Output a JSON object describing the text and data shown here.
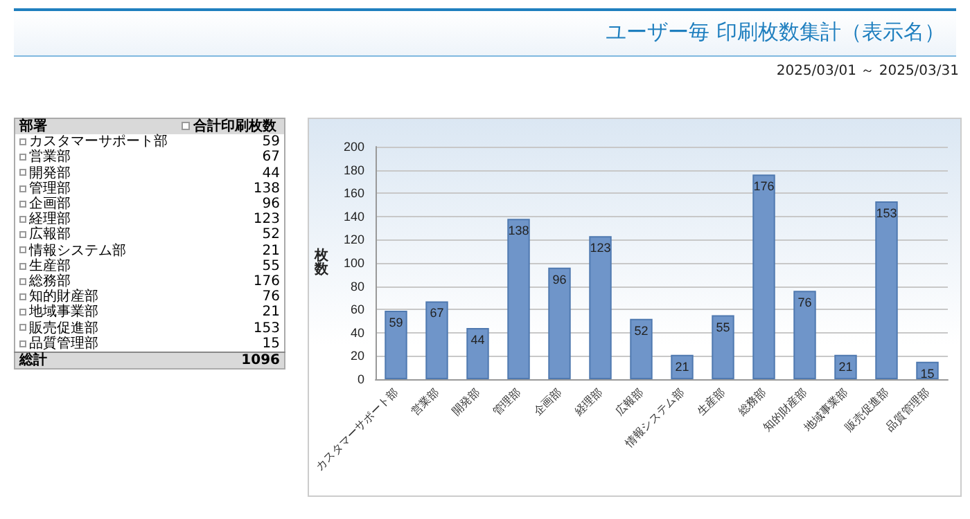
{
  "chart_data": [
    {
      "type": "other",
      "title": "ユーザー毎 印刷枚数集計（表示名）",
      "subtitle": "2025/03/01 ～ 2025/03/31",
      "categories": [
        "カスタマーサポート部",
        "営業部",
        "開発部",
        "管理部",
        "企画部",
        "経理部",
        "広報部",
        "情報システム部",
        "生産部",
        "総務部",
        "知的財産部",
        "地域事業部",
        "販売促進部",
        "品質管理部"
      ],
      "values": [
        59,
        67,
        44,
        138,
        96,
        123,
        52,
        21,
        55,
        176,
        76,
        21,
        153,
        15
      ],
      "data_labels": true,
      "annotations": [
        "部署",
        "合計印刷枚数",
        "総計",
        "1096"
      ]
    },
    {
      "type": "bar",
      "ylabel": "枚数",
      "categories": [
        "カスタマーサポート部",
        "営業部",
        "開発部",
        "管理部",
        "企画部",
        "経理部",
        "広報部",
        "情報システム部",
        "生産部",
        "総務部",
        "知的財産部",
        "地域事業部",
        "販売促進部",
        "品質管理部"
      ],
      "values": [
        59,
        67,
        44,
        138,
        96,
        123,
        52,
        21,
        55,
        176,
        76,
        21,
        153,
        15
      ],
      "color": "#6f95c9",
      "ylim": [
        0,
        200
      ],
      "yticks": [
        0,
        20,
        40,
        60,
        80,
        100,
        120,
        140,
        160,
        180,
        200
      ],
      "grid": "y",
      "data_labels": true
    }
  ]
}
